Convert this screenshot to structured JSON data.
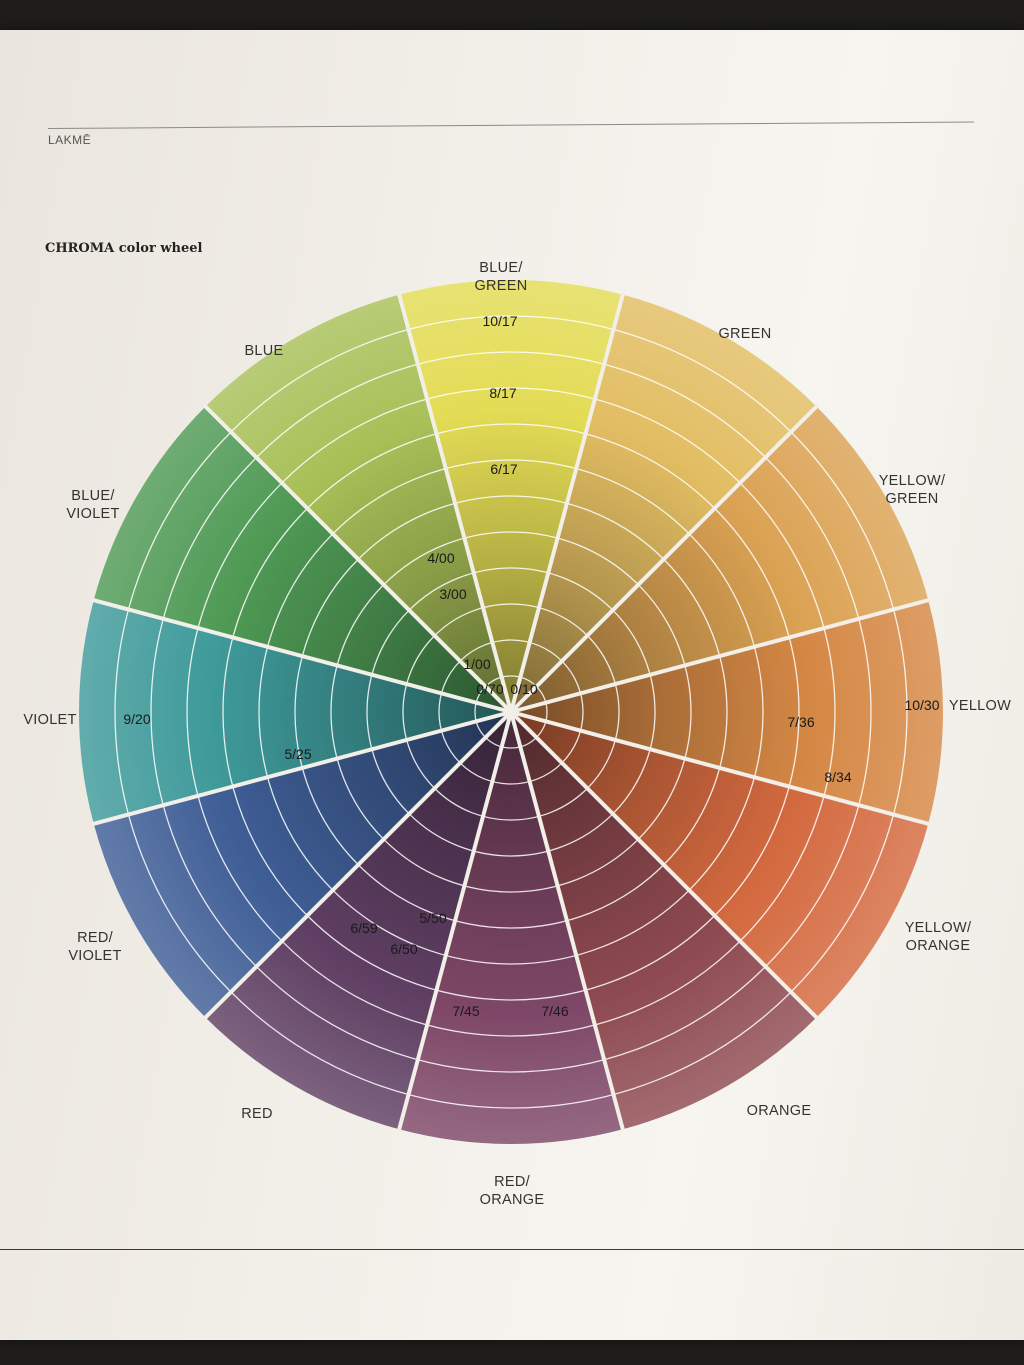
{
  "brand": "LAKMĒ",
  "heading": "CHROMA color wheel",
  "segments": [
    {
      "key": "blue_green",
      "lines": [
        "BLUE/",
        "GREEN"
      ],
      "color": "#3f9a9a"
    },
    {
      "key": "green",
      "lines": [
        "GREEN"
      ],
      "color": "#4f9a55"
    },
    {
      "key": "yellow_green",
      "lines": [
        "YELLOW/",
        "GREEN"
      ],
      "color": "#a9c058"
    },
    {
      "key": "yellow",
      "lines": [
        "YELLOW"
      ],
      "color": "#e3dc55"
    },
    {
      "key": "yellow_orange",
      "lines": [
        "YELLOW/",
        "ORANGE"
      ],
      "color": "#e2bd62"
    },
    {
      "key": "orange",
      "lines": [
        "ORANGE"
      ],
      "color": "#dba253"
    },
    {
      "key": "red_orange",
      "lines": [
        "RED/",
        "ORANGE"
      ],
      "color": "#d58845"
    },
    {
      "key": "red",
      "lines": [
        "RED"
      ],
      "color": "#d46a40"
    },
    {
      "key": "red_violet",
      "lines": [
        "RED/",
        "VIOLET"
      ],
      "color": "#8e4a50"
    },
    {
      "key": "violet",
      "lines": [
        "VIOLET"
      ],
      "color": "#7e4767"
    },
    {
      "key": "blue_violet",
      "lines": [
        "BLUE/",
        "VIOLET"
      ],
      "color": "#5f3f63"
    },
    {
      "key": "blue",
      "lines": [
        "BLUE"
      ],
      "color": "#3f5e96"
    }
  ],
  "shades": [
    {
      "text": "10/17"
    },
    {
      "text": "8/17"
    },
    {
      "text": "6/17"
    },
    {
      "text": "4/00"
    },
    {
      "text": "3/00"
    },
    {
      "text": "1/00"
    },
    {
      "text": "0/70"
    },
    {
      "text": "0/10"
    },
    {
      "text": "7/36"
    },
    {
      "text": "10/30"
    },
    {
      "text": "8/34"
    },
    {
      "text": "9/20"
    },
    {
      "text": "5/25"
    },
    {
      "text": "6/59"
    },
    {
      "text": "5/50"
    },
    {
      "text": "6/50"
    },
    {
      "text": "7/45"
    },
    {
      "text": "7/46"
    }
  ]
}
